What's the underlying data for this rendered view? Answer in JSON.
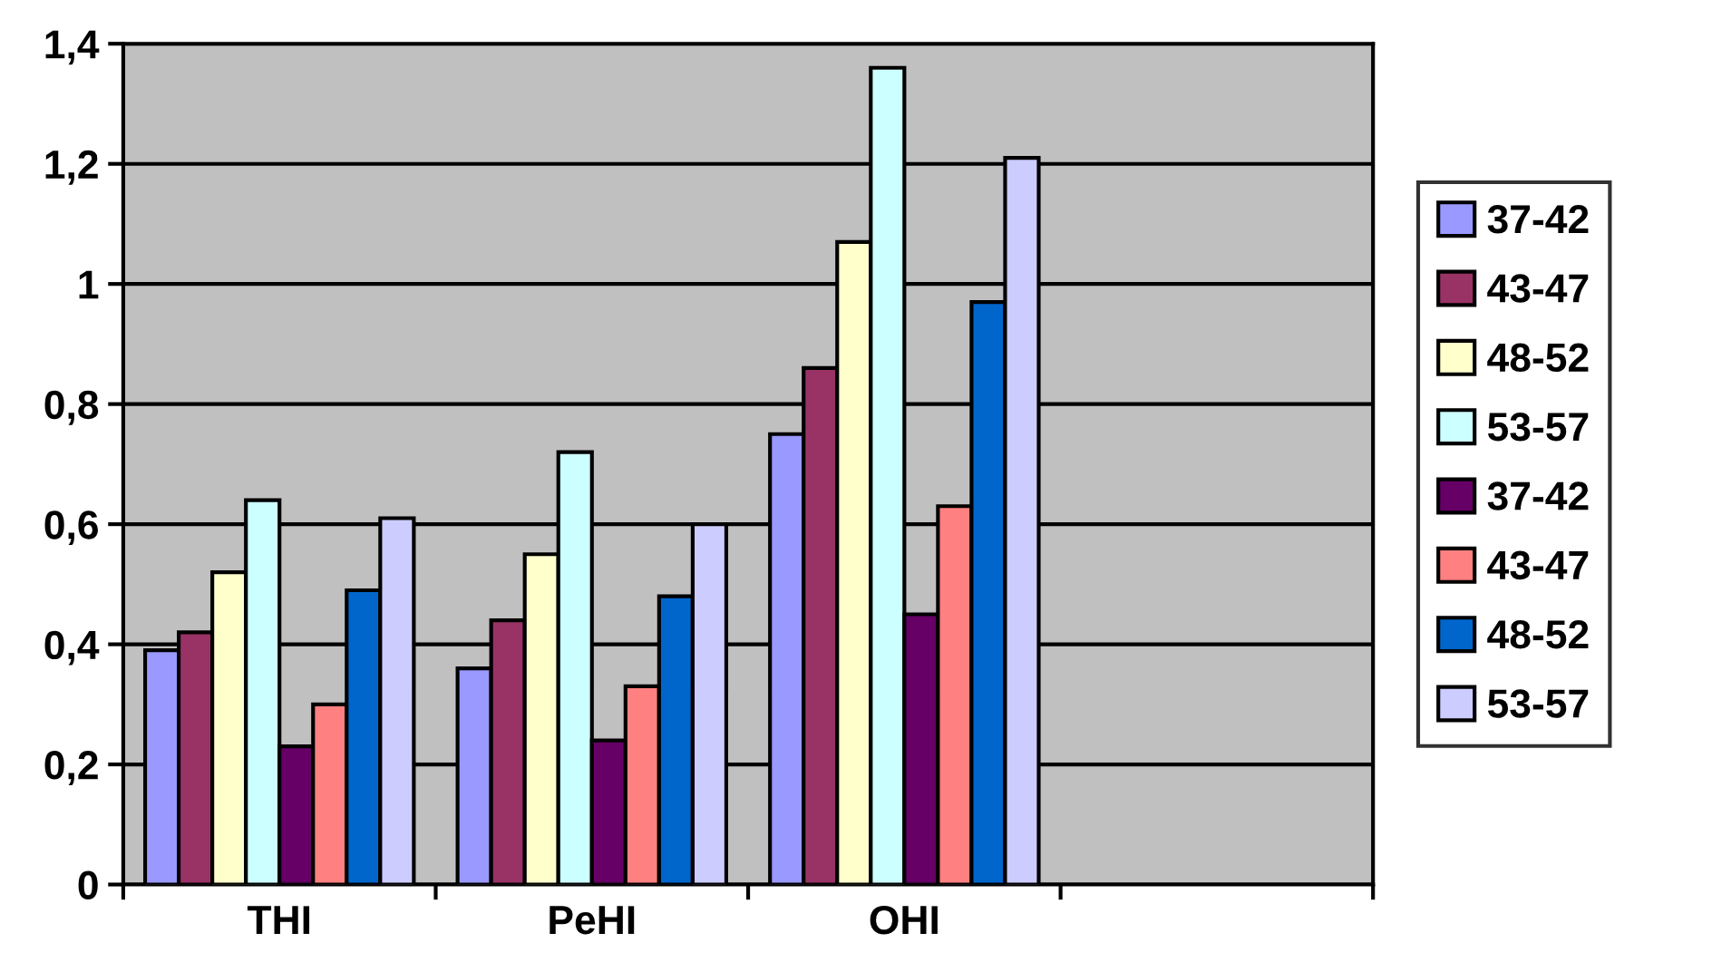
{
  "chart_data": {
    "type": "bar",
    "categories": [
      "THI",
      "PeHI",
      "OHI",
      null
    ],
    "series": [
      {
        "name": "37-42",
        "color": "#9999ff",
        "values": [
          0.39,
          0.36,
          0.75,
          null
        ]
      },
      {
        "name": "43-47",
        "color": "#993366",
        "values": [
          0.42,
          0.44,
          0.86,
          null
        ]
      },
      {
        "name": "48-52",
        "color": "#ffffcc",
        "values": [
          0.52,
          0.55,
          1.07,
          null
        ]
      },
      {
        "name": "53-57",
        "color": "#ccffff",
        "values": [
          0.64,
          0.72,
          1.36,
          null
        ]
      },
      {
        "name": "37-42",
        "color": "#660066",
        "values": [
          0.23,
          0.24,
          0.45,
          null
        ]
      },
      {
        "name": "43-47",
        "color": "#ff8080",
        "values": [
          0.3,
          0.33,
          0.63,
          null
        ]
      },
      {
        "name": "48-52",
        "color": "#0066cc",
        "values": [
          0.49,
          0.48,
          0.97,
          null
        ]
      },
      {
        "name": "53-57",
        "color": "#ccccff",
        "values": [
          0.61,
          0.6,
          1.21,
          null
        ]
      }
    ],
    "ylim": [
      0,
      1.4
    ],
    "yticks": [
      0,
      {
        "value": 0.2,
        "label": "0,2"
      },
      {
        "value": 0.4,
        "label": "0,4"
      },
      {
        "value": 0.6,
        "label": "0,6"
      },
      {
        "value": 0.8,
        "label": "0,8"
      },
      1,
      {
        "value": 1.2,
        "label": "1,2"
      },
      {
        "value": 1.4,
        "label": "1,4"
      }
    ],
    "grid": "y",
    "legend": "right"
  }
}
